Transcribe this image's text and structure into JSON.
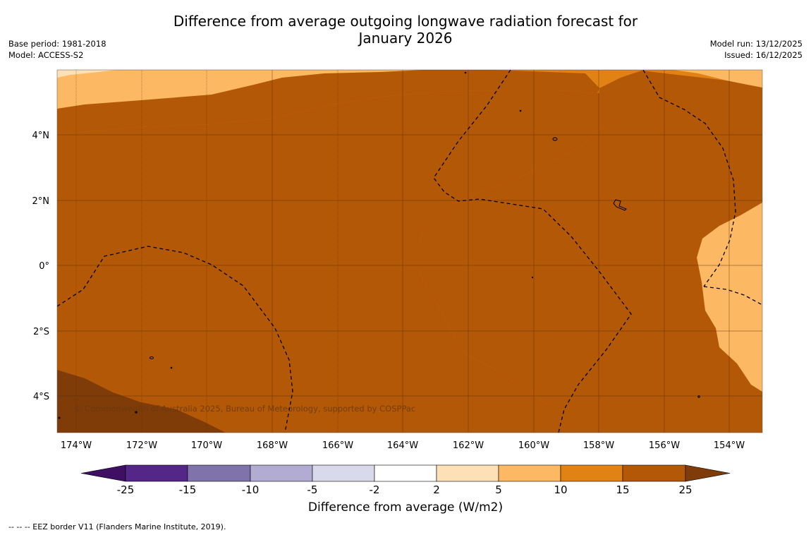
{
  "title_line1": "Difference from average outgoing longwave radiation forecast for",
  "title_line2": "January 2026",
  "base_period": "Base period: 1981-2018",
  "model": "Model: ACCESS-S2",
  "model_run": "Model run: 13/12/2025",
  "issued": "Issued: 16/12/2025",
  "copyright": "© Commonwealth of Australia 2025, Bureau of Meteorology, supported by COSPPac",
  "lon_ticks": [
    "174°W",
    "172°W",
    "170°W",
    "168°W",
    "166°W",
    "164°W",
    "162°W",
    "160°W",
    "158°W",
    "156°W",
    "154°W"
  ],
  "lat_ticks": [
    "4°N",
    "2°N",
    "0°",
    "2°S",
    "4°S"
  ],
  "colorbar": {
    "title": "Difference from average (W/m2)",
    "labels": [
      "-25",
      "-15",
      "-10",
      "-5",
      "-2",
      "2",
      "5",
      "10",
      "15",
      "25"
    ],
    "colors": [
      "#3f0f63",
      "#542688",
      "#8073ac",
      "#b2abd2",
      "#d8daeb",
      "#ffffff",
      "#fee0b6",
      "#fdb863",
      "#e08214",
      "#b35806",
      "#7f3b08"
    ]
  },
  "footer": "--  --  -- EEZ border V11 (Flanders Marine Institute, 2019)."
}
